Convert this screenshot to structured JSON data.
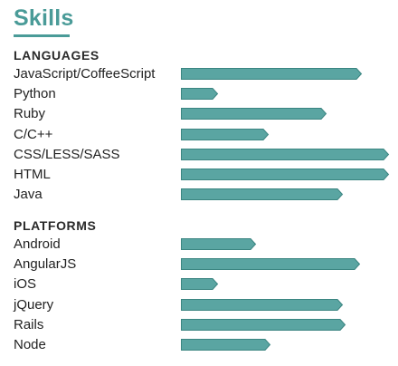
{
  "title": "Skills",
  "colors": {
    "accent": "#4a9b98",
    "bar_fill": "#5aa5a2",
    "bar_stroke": "#3b8581"
  },
  "sections": [
    {
      "heading": "LANGUAGES",
      "skills": [
        {
          "name": "JavaScript/CoffeeScript",
          "level": 0.87
        },
        {
          "name": "Python",
          "level": 0.18
        },
        {
          "name": "Ruby",
          "level": 0.7
        },
        {
          "name": "C/C++",
          "level": 0.42
        },
        {
          "name": "CSS/LESS/SASS",
          "level": 1.0
        },
        {
          "name": "HTML",
          "level": 1.0
        },
        {
          "name": "Java",
          "level": 0.78
        }
      ]
    },
    {
      "heading": "PLATFORMS",
      "skills": [
        {
          "name": "Android",
          "level": 0.36
        },
        {
          "name": "AngularJS",
          "level": 0.86
        },
        {
          "name": "iOS",
          "level": 0.18
        },
        {
          "name": "jQuery",
          "level": 0.78
        },
        {
          "name": "Rails",
          "level": 0.79
        },
        {
          "name": "Node",
          "level": 0.43
        }
      ]
    }
  ]
}
